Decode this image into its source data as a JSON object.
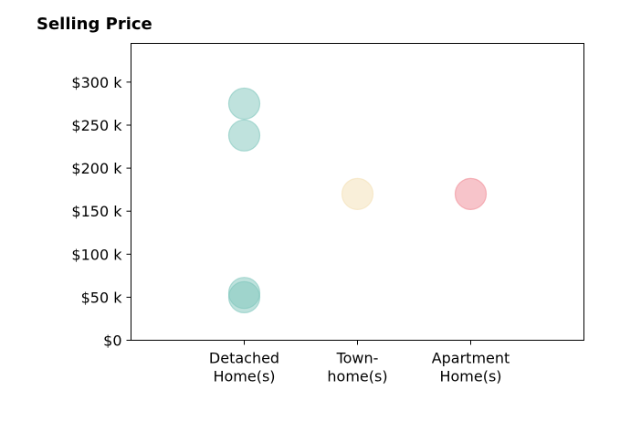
{
  "chart_data": {
    "type": "scatter",
    "title": "Selling Price",
    "xlabel": "",
    "ylabel": "",
    "categories": [
      [
        "Detached",
        "Home(s)"
      ],
      [
        "Town-",
        "home(s)"
      ],
      [
        "Apartment",
        "Home(s)"
      ]
    ],
    "y_ticks": [
      0,
      50000,
      100000,
      150000,
      200000,
      250000,
      300000
    ],
    "y_tick_labels": [
      "$0",
      "$50 k",
      "$100 k",
      "$150 k",
      "$200 k",
      "$250 k",
      "$300 k"
    ],
    "xlim": [
      -1,
      3
    ],
    "ylim": [
      0,
      345000
    ],
    "grid": false,
    "points": [
      {
        "category": 0,
        "y": 275000,
        "color": "#7fc6bc"
      },
      {
        "category": 0,
        "y": 238000,
        "color": "#7fc6bc"
      },
      {
        "category": 0,
        "y": 55000,
        "color": "#7fc6bc"
      },
      {
        "category": 0,
        "y": 50000,
        "color": "#7fc6bc"
      },
      {
        "category": 1,
        "y": 170000,
        "color": "#f4dfb4"
      },
      {
        "category": 2,
        "y": 170000,
        "color": "#f08a95"
      }
    ]
  }
}
